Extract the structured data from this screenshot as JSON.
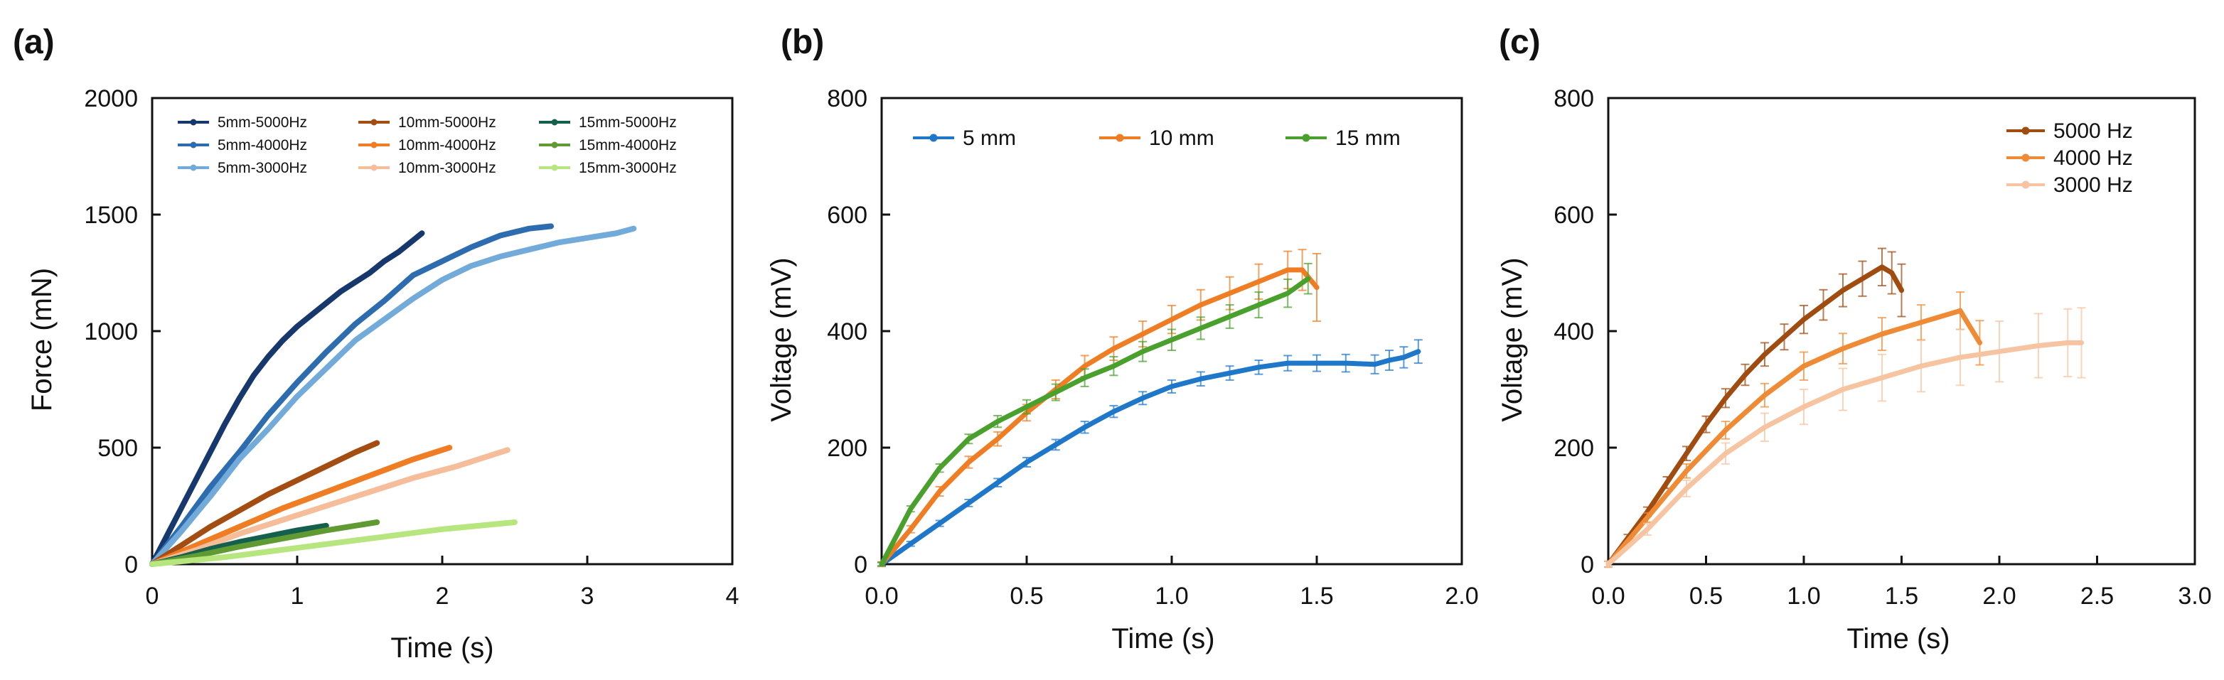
{
  "figure": {
    "panel_labels": [
      "(a)",
      "(b)",
      "(c)"
    ]
  },
  "chart_data": [
    {
      "type": "line",
      "panel": "(a)",
      "title": "",
      "xlabel": "Time (s)",
      "ylabel": "Force (mN)",
      "xlim": [
        0,
        4
      ],
      "ylim": [
        0,
        2000
      ],
      "xticks": [
        0,
        1,
        2,
        3,
        4
      ],
      "yticks": [
        0,
        500,
        1000,
        1500,
        2000
      ],
      "legend": {
        "location": "top-left",
        "columns": 3,
        "entries": [
          "5mm-5000Hz",
          "5mm-4000Hz",
          "5mm-3000Hz",
          "10mm-5000Hz",
          "10mm-4000Hz",
          "10mm-3000Hz",
          "15mm-5000Hz",
          "15mm-4000Hz",
          "15mm-3000Hz"
        ]
      },
      "series": [
        {
          "name": "5mm-5000Hz",
          "color": "#17386d",
          "x": [
            0,
            0.1,
            0.2,
            0.3,
            0.4,
            0.5,
            0.6,
            0.7,
            0.8,
            0.9,
            1.0,
            1.1,
            1.2,
            1.3,
            1.4,
            1.5,
            1.6,
            1.7,
            1.8,
            1.86
          ],
          "y": [
            0,
            120,
            240,
            360,
            480,
            600,
            710,
            810,
            890,
            960,
            1020,
            1070,
            1120,
            1170,
            1210,
            1250,
            1300,
            1340,
            1390,
            1420
          ]
        },
        {
          "name": "5mm-4000Hz",
          "color": "#2e6cb0",
          "x": [
            0,
            0.2,
            0.4,
            0.6,
            0.8,
            1.0,
            1.2,
            1.4,
            1.6,
            1.8,
            2.0,
            2.2,
            2.4,
            2.6,
            2.75
          ],
          "y": [
            0,
            160,
            330,
            480,
            640,
            780,
            910,
            1030,
            1130,
            1240,
            1300,
            1360,
            1410,
            1440,
            1450
          ]
        },
        {
          "name": "5mm-3000Hz",
          "color": "#72aad9",
          "x": [
            0,
            0.2,
            0.4,
            0.6,
            0.8,
            1.0,
            1.2,
            1.4,
            1.6,
            1.8,
            2.0,
            2.2,
            2.4,
            2.6,
            2.8,
            3.0,
            3.2,
            3.32
          ],
          "y": [
            0,
            140,
            290,
            450,
            580,
            720,
            840,
            960,
            1050,
            1140,
            1220,
            1280,
            1320,
            1350,
            1380,
            1400,
            1420,
            1440
          ]
        },
        {
          "name": "10mm-5000Hz",
          "color": "#a44d12",
          "x": [
            0,
            0.2,
            0.4,
            0.6,
            0.8,
            1.0,
            1.2,
            1.4,
            1.55
          ],
          "y": [
            0,
            80,
            160,
            230,
            300,
            360,
            420,
            480,
            520
          ]
        },
        {
          "name": "10mm-4000Hz",
          "color": "#ef7d24",
          "x": [
            0,
            0.3,
            0.6,
            0.9,
            1.2,
            1.5,
            1.8,
            2.05
          ],
          "y": [
            0,
            80,
            160,
            240,
            310,
            380,
            450,
            500
          ]
        },
        {
          "name": "10mm-3000Hz",
          "color": "#f5bd99",
          "x": [
            0,
            0.3,
            0.6,
            0.9,
            1.2,
            1.5,
            1.8,
            2.1,
            2.45
          ],
          "y": [
            0,
            60,
            130,
            190,
            250,
            310,
            370,
            420,
            490
          ]
        },
        {
          "name": "15mm-5000Hz",
          "color": "#15604c",
          "x": [
            0,
            0.2,
            0.4,
            0.6,
            0.8,
            1.0,
            1.2
          ],
          "y": [
            0,
            30,
            65,
            95,
            120,
            145,
            165
          ]
        },
        {
          "name": "15mm-4000Hz",
          "color": "#5f9b32",
          "x": [
            0,
            0.3,
            0.6,
            0.9,
            1.2,
            1.55
          ],
          "y": [
            0,
            35,
            75,
            110,
            145,
            180
          ]
        },
        {
          "name": "15mm-3000Hz",
          "color": "#b7e67f",
          "x": [
            0,
            0.5,
            1.0,
            1.5,
            2.0,
            2.5
          ],
          "y": [
            0,
            30,
            70,
            110,
            150,
            180
          ]
        }
      ]
    },
    {
      "type": "line",
      "panel": "(b)",
      "title": "",
      "xlabel": "Time (s)",
      "ylabel": "Voltage (mV)",
      "xlim": [
        0,
        2.0
      ],
      "ylim": [
        0,
        800
      ],
      "xticks": [
        0.0,
        0.5,
        1.0,
        1.5,
        2.0
      ],
      "yticks": [
        0,
        200,
        400,
        600,
        800
      ],
      "legend": {
        "location": "top",
        "columns": 3,
        "entries": [
          "5 mm",
          "10 mm",
          "15 mm"
        ]
      },
      "series": [
        {
          "name": "5 mm",
          "color": "#1f77c9",
          "x": [
            0,
            0.1,
            0.2,
            0.3,
            0.4,
            0.5,
            0.6,
            0.7,
            0.8,
            0.9,
            1.0,
            1.1,
            1.2,
            1.3,
            1.4,
            1.5,
            1.6,
            1.7,
            1.75,
            1.8,
            1.85
          ],
          "y": [
            0,
            35,
            70,
            105,
            140,
            175,
            205,
            235,
            262,
            285,
            305,
            318,
            328,
            338,
            345,
            345,
            345,
            343,
            350,
            355,
            365
          ],
          "err": [
            3,
            4,
            5,
            6,
            7,
            8,
            9,
            10,
            10,
            11,
            11,
            12,
            12,
            12,
            13,
            14,
            15,
            16,
            17,
            18,
            20
          ]
        },
        {
          "name": "10 mm",
          "color": "#ef7d24",
          "x": [
            0,
            0.1,
            0.2,
            0.3,
            0.4,
            0.5,
            0.6,
            0.7,
            0.8,
            0.9,
            1.0,
            1.1,
            1.2,
            1.3,
            1.4,
            1.45,
            1.5
          ],
          "y": [
            0,
            60,
            125,
            175,
            215,
            260,
            300,
            340,
            370,
            395,
            420,
            445,
            465,
            485,
            505,
            505,
            475
          ],
          "err": [
            4,
            6,
            8,
            10,
            12,
            14,
            16,
            18,
            20,
            22,
            24,
            26,
            28,
            30,
            32,
            35,
            58
          ]
        },
        {
          "name": "15 mm",
          "color": "#4aa02c",
          "x": [
            0,
            0.1,
            0.2,
            0.3,
            0.4,
            0.5,
            0.6,
            0.7,
            0.8,
            0.9,
            1.0,
            1.1,
            1.2,
            1.3,
            1.4,
            1.47
          ],
          "y": [
            0,
            95,
            165,
            215,
            245,
            270,
            295,
            320,
            340,
            365,
            385,
            405,
            425,
            445,
            465,
            490
          ],
          "err": [
            3,
            5,
            7,
            8,
            10,
            12,
            14,
            15,
            16,
            17,
            18,
            19,
            20,
            22,
            24,
            26
          ]
        }
      ]
    },
    {
      "type": "line",
      "panel": "(c)",
      "title": "",
      "xlabel": "Time (s)",
      "ylabel": "Voltage (mV)",
      "xlim": [
        0,
        3.0
      ],
      "ylim": [
        0,
        800
      ],
      "xticks": [
        0.0,
        0.5,
        1.0,
        1.5,
        2.0,
        2.5,
        3.0
      ],
      "yticks": [
        0,
        200,
        400,
        600,
        800
      ],
      "legend": {
        "location": "top-right",
        "columns": 1,
        "entries": [
          "5000 Hz",
          "4000 Hz",
          "3000 Hz"
        ]
      },
      "series": [
        {
          "name": "5000 Hz",
          "color": "#a04b10",
          "x": [
            0,
            0.1,
            0.2,
            0.3,
            0.4,
            0.5,
            0.6,
            0.7,
            0.8,
            0.9,
            1.0,
            1.1,
            1.2,
            1.3,
            1.4,
            1.45,
            1.5
          ],
          "y": [
            0,
            45,
            90,
            140,
            190,
            240,
            285,
            325,
            360,
            390,
            420,
            445,
            470,
            490,
            510,
            500,
            470
          ],
          "err": [
            5,
            6,
            8,
            10,
            12,
            14,
            16,
            18,
            20,
            22,
            24,
            26,
            28,
            30,
            32,
            36,
            45
          ]
        },
        {
          "name": "4000 Hz",
          "color": "#ef8a35",
          "x": [
            0,
            0.2,
            0.4,
            0.6,
            0.8,
            1.0,
            1.2,
            1.4,
            1.6,
            1.8,
            1.9
          ],
          "y": [
            0,
            80,
            160,
            230,
            290,
            340,
            370,
            395,
            415,
            435,
            380
          ],
          "err": [
            5,
            8,
            12,
            15,
            20,
            24,
            26,
            28,
            30,
            32,
            38
          ]
        },
        {
          "name": "3000 Hz",
          "color": "#f6c4a1",
          "x": [
            0,
            0.2,
            0.4,
            0.6,
            0.8,
            1.0,
            1.2,
            1.4,
            1.6,
            1.8,
            2.0,
            2.2,
            2.35,
            2.42
          ],
          "y": [
            0,
            60,
            130,
            190,
            235,
            270,
            300,
            320,
            340,
            355,
            365,
            375,
            380,
            380
          ],
          "err": [
            5,
            10,
            14,
            18,
            24,
            30,
            36,
            40,
            44,
            48,
            52,
            55,
            58,
            60
          ]
        }
      ]
    }
  ]
}
